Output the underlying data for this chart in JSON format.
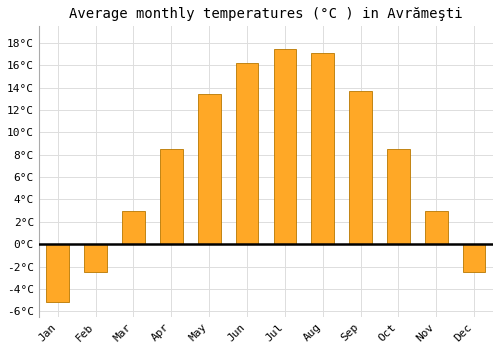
{
  "title": "Average monthly temperatures (°C ) in Avrămeşti",
  "months": [
    "Jan",
    "Feb",
    "Mar",
    "Apr",
    "May",
    "Jun",
    "Jul",
    "Aug",
    "Sep",
    "Oct",
    "Nov",
    "Dec"
  ],
  "values": [
    -5.2,
    -2.5,
    3.0,
    8.5,
    13.4,
    16.2,
    17.5,
    17.1,
    13.7,
    8.5,
    3.0,
    -2.5
  ],
  "bar_color": "#FFA826",
  "bar_edge_color": "#B87800",
  "ylim": [
    -6.5,
    19.5
  ],
  "yticks": [
    -6,
    -4,
    -2,
    0,
    2,
    4,
    6,
    8,
    10,
    12,
    14,
    16,
    18
  ],
  "background_color": "#FFFFFF",
  "plot_bg_color": "#FFFFFF",
  "grid_color": "#DDDDDD",
  "title_fontsize": 10,
  "tick_fontsize": 8,
  "zero_line_color": "#000000",
  "bar_width": 0.6
}
